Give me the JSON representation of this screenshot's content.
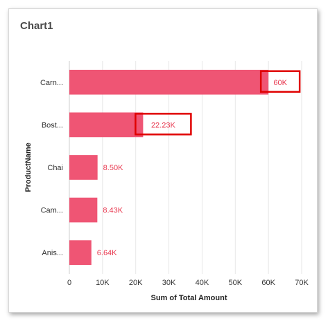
{
  "card": {
    "title": "Chart1"
  },
  "colors": {
    "bar": "#EF5574",
    "data_label": "#E8384F",
    "highlight_box": "#E00000",
    "grid": "#E6E6E6"
  },
  "chart_data": {
    "type": "bar",
    "orientation": "horizontal",
    "categories": [
      "Carn...",
      "Bost...",
      "Chai",
      "Cam...",
      "Anis..."
    ],
    "values": [
      60000,
      22230,
      8500,
      8430,
      6640
    ],
    "data_labels": [
      "60K",
      "22.23K",
      "8.50K",
      "8.43K",
      "6.64K"
    ],
    "highlighted_labels": [
      0,
      1
    ],
    "xlabel": "Sum of Total Amount",
    "ylabel": "ProductName",
    "xlim": [
      0,
      70000
    ],
    "x_ticks": [
      0,
      10000,
      20000,
      30000,
      40000,
      50000,
      60000,
      70000
    ],
    "x_tick_labels": [
      "0",
      "10K",
      "20K",
      "30K",
      "40K",
      "50K",
      "60K",
      "70K"
    ],
    "grid": true,
    "legend": "none"
  }
}
